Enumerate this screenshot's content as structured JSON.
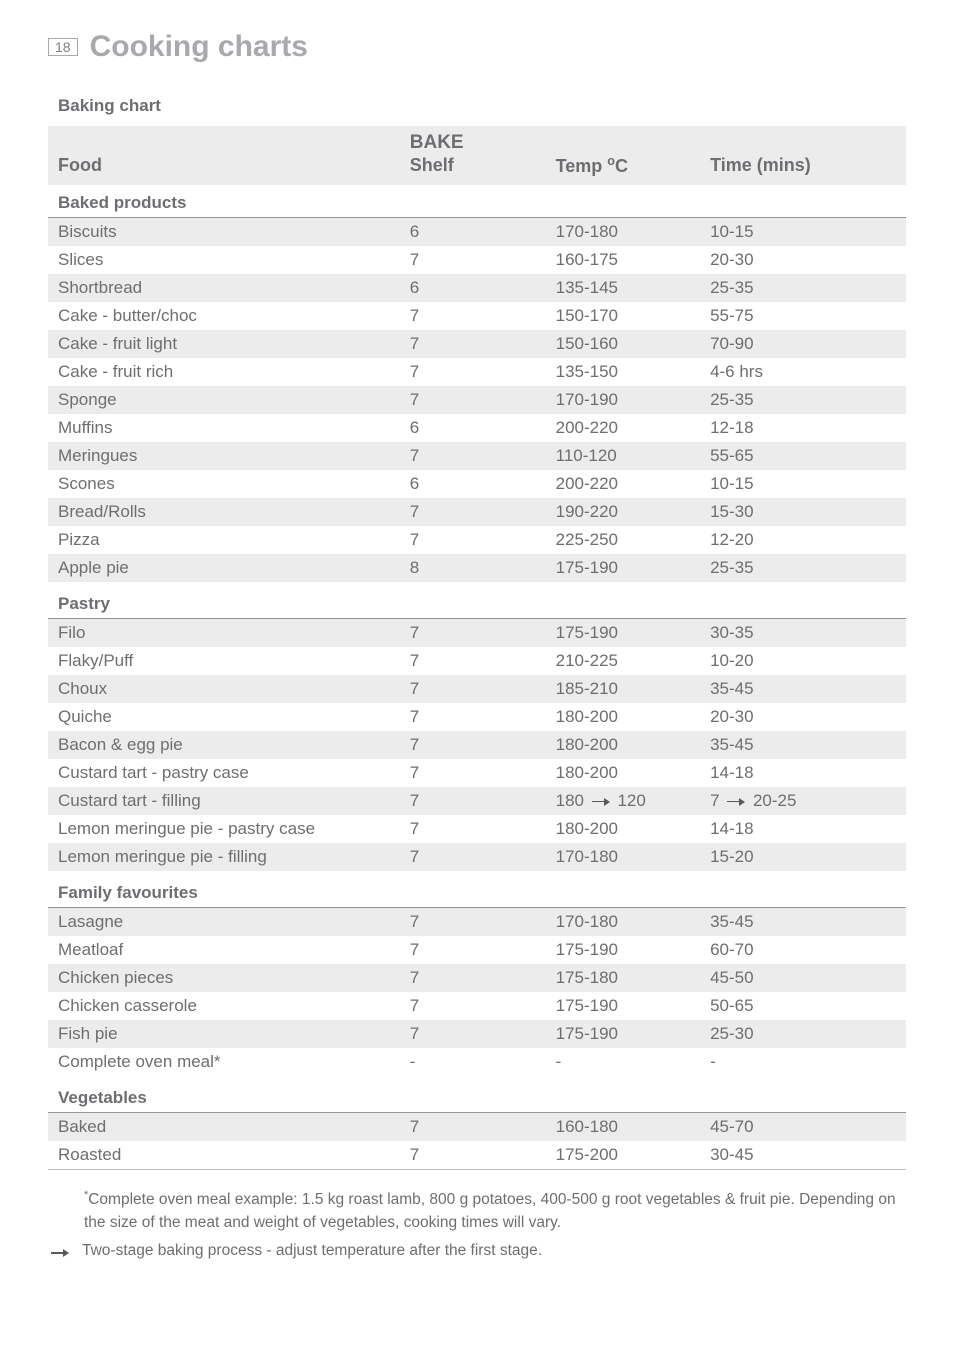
{
  "page": {
    "number": "18",
    "title": "Cooking charts",
    "chart_label": "Baking chart"
  },
  "headers": {
    "bake": "BAKE",
    "food": "Food",
    "shelf": "Shelf",
    "temp_html": "Temp <span class=\"sup\">o</span>C",
    "time": "Time (mins)"
  },
  "sections": [
    {
      "title": "Baked products",
      "rows": [
        {
          "food": "Biscuits",
          "shelf": "6",
          "temp": "170-180",
          "time": "10-15"
        },
        {
          "food": "Slices",
          "shelf": "7",
          "temp": "160-175",
          "time": "20-30"
        },
        {
          "food": "Shortbread",
          "shelf": "6",
          "temp": "135-145",
          "time": "25-35"
        },
        {
          "food": "Cake - butter/choc",
          "shelf": "7",
          "temp": "150-170",
          "time": "55-75"
        },
        {
          "food": "Cake - fruit light",
          "shelf": "7",
          "temp": "150-160",
          "time": "70-90"
        },
        {
          "food": "Cake - fruit rich",
          "shelf": "7",
          "temp": "135-150",
          "time": "4-6 hrs"
        },
        {
          "food": "Sponge",
          "shelf": "7",
          "temp": "170-190",
          "time": "25-35"
        },
        {
          "food": "Muffins",
          "shelf": "6",
          "temp": "200-220",
          "time": "12-18"
        },
        {
          "food": "Meringues",
          "shelf": "7",
          "temp": "110-120",
          "time": "55-65"
        },
        {
          "food": "Scones",
          "shelf": "6",
          "temp": "200-220",
          "time": "10-15"
        },
        {
          "food": "Bread/Rolls",
          "shelf": "7",
          "temp": "190-220",
          "time": "15-30"
        },
        {
          "food": "Pizza",
          "shelf": "7",
          "temp": "225-250",
          "time": "12-20"
        },
        {
          "food": "Apple pie",
          "shelf": "8",
          "temp": "175-190",
          "time": "25-35"
        }
      ]
    },
    {
      "title": "Pastry",
      "rows": [
        {
          "food": "Filo",
          "shelf": "7",
          "temp": "175-190",
          "time": "30-35"
        },
        {
          "food": "Flaky/Puff",
          "shelf": "7",
          "temp": "210-225",
          "time": "10-20"
        },
        {
          "food": "Choux",
          "shelf": "7",
          "temp": "185-210",
          "time": "35-45"
        },
        {
          "food": "Quiche",
          "shelf": "7",
          "temp": "180-200",
          "time": "20-30"
        },
        {
          "food": "Bacon & egg pie",
          "shelf": "7",
          "temp": "180-200",
          "time": "35-45"
        },
        {
          "food": "Custard tart - pastry case",
          "shelf": "7",
          "temp": "180-200",
          "time": "14-18"
        },
        {
          "food": "Custard tart - filling",
          "shelf": "7",
          "temp_from": "180",
          "temp_to": "120",
          "time_from": "7",
          "time_to": "20-25",
          "arrow": true
        },
        {
          "food": "Lemon meringue pie - pastry case",
          "shelf": "7",
          "temp": "180-200",
          "time": "14-18"
        },
        {
          "food": "Lemon meringue pie - filling",
          "shelf": "7",
          "temp": "170-180",
          "time": "15-20"
        }
      ]
    },
    {
      "title": "Family favourites",
      "rows": [
        {
          "food": "Lasagne",
          "shelf": "7",
          "temp": "170-180",
          "time": "35-45"
        },
        {
          "food": "Meatloaf",
          "shelf": "7",
          "temp": "175-190",
          "time": "60-70"
        },
        {
          "food": "Chicken pieces",
          "shelf": "7",
          "temp": "175-180",
          "time": "45-50"
        },
        {
          "food": "Chicken casserole",
          "shelf": "7",
          "temp": "175-190",
          "time": "50-65"
        },
        {
          "food": "Fish pie",
          "shelf": "7",
          "temp": "175-190",
          "time": "25-30"
        },
        {
          "food": "Complete oven meal*",
          "shelf": "-",
          "temp": "-",
          "time": "-"
        }
      ]
    },
    {
      "title": "Vegetables",
      "rows": [
        {
          "food": "Baked",
          "shelf": "7",
          "temp": "160-180",
          "time": "45-70"
        },
        {
          "food": "Roasted",
          "shelf": "7",
          "temp": "175-200",
          "time": "30-45"
        }
      ]
    }
  ],
  "footnotes": {
    "asterisk_html": "<span class=\"sup\">*</span>Complete oven meal example: 1.5 kg roast lamb, 800 g potatoes, 400-500 g root vegetables & fruit pie. Depending on the size of the meat and weight of vegetables, cooking times will vary.",
    "arrow": "Two-stage baking process - adjust temperature after the first stage."
  },
  "style": {
    "row_odd_bg": "#ececed",
    "row_even_bg": "#ffffff",
    "text_color": "#6d6e71",
    "title_color": "#a7a9ac",
    "rule_color": "#939598"
  }
}
